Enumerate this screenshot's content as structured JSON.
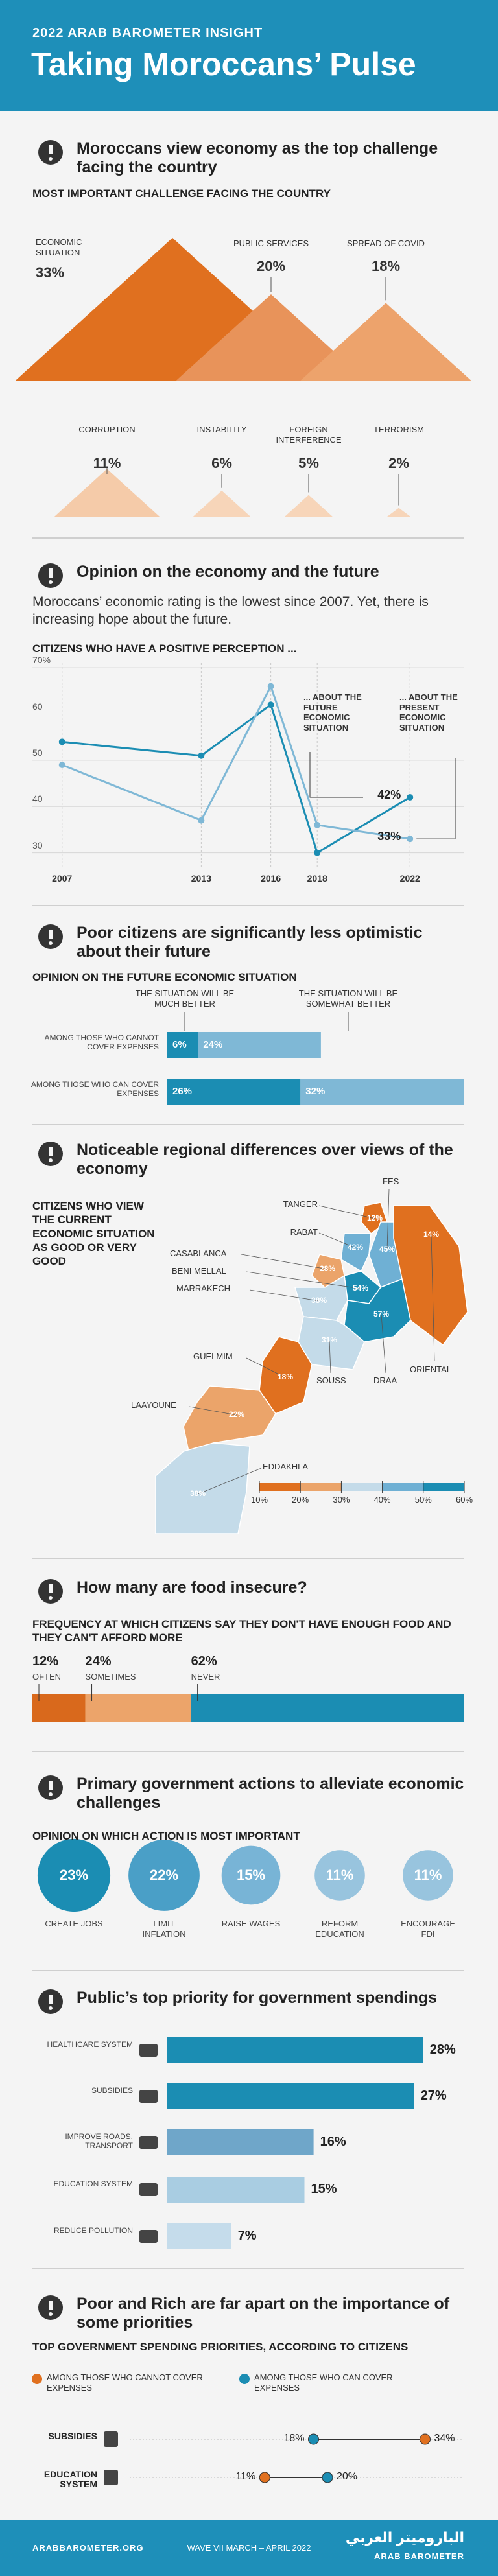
{
  "header": {
    "kicker": "2022 ARAB BAROMETER INSIGHT",
    "title": "Taking Moroccans’ Pulse"
  },
  "sections": [
    {
      "title": "Moroccans view economy as the top challenge facing the country",
      "subtitle": "MOST IMPORTANT CHALLENGE FACING THE COUNTRY",
      "chart_data": {
        "type": "triangle",
        "categories": [
          "ECONOMIC SITUATION",
          "PUBLIC SERVICES",
          "SPREAD OF COVID",
          "CORRUPTION",
          "INSTABILITY",
          "FOREIGN INTERFERENCE",
          "TERRORISM"
        ],
        "values": [
          33,
          20,
          18,
          11,
          6,
          5,
          2
        ],
        "value_labels": [
          "33%",
          "20%",
          "18%",
          "11%",
          "6%",
          "5%",
          "2%"
        ],
        "colors": [
          "#e0701f",
          "#e8935a",
          "#eda36c",
          "#f5cba9",
          "#f7d5b9",
          "#f7d5b9",
          "#f7d5b9"
        ]
      }
    },
    {
      "title": "Opinion on the economy and the future",
      "text": "Moroccans’ economic rating is the lowest since 2007. Yet, there is increasing hope about the future.",
      "subtitle": "CITIZENS WHO HAVE A POSITIVE PERCEPTION ...",
      "chart_data": {
        "type": "line",
        "x": [
          2007,
          2013,
          2016,
          2018,
          2022
        ],
        "xlim": [
          2006,
          2023
        ],
        "xticks": [
          2007,
          2013,
          2016,
          2018,
          2022
        ],
        "ylim": [
          27,
          71
        ],
        "yticks": [
          30,
          40,
          50,
          60,
          {
            "value": 70,
            "label": "70%"
          }
        ],
        "grid": true,
        "series": [
          {
            "name": "... ABOUT THE FUTURE ECONOMIC SITUATION",
            "color": "#1b8db3",
            "values": [
              54,
              51,
              62,
              30,
              42
            ],
            "value_labels": [
              null,
              null,
              null,
              null,
              "42%"
            ]
          },
          {
            "name": "... ABOUT THE PRESENT ECONOMIC SITUATION",
            "color": "#7fb8d6",
            "values": [
              49,
              37,
              66,
              36,
              33
            ],
            "value_labels": [
              null,
              null,
              null,
              null,
              "33%"
            ]
          }
        ]
      }
    },
    {
      "title": "Poor citizens are significantly less optimistic about their future",
      "subtitle": "OPINION ON THE FUTURE ECONOMIC SITUATION",
      "chart_data": {
        "type": "stacked_hbar",
        "categories": [
          "AMONG THOSE WHO CANNOT COVER EXPENSES",
          "AMONG THOSE WHO CAN COVER EXPENSES"
        ],
        "series": [
          {
            "name": "THE SITUATION WILL BE MUCH BETTER",
            "color": "#1b8db3",
            "values": [
              6,
              26
            ],
            "value_labels": [
              "6%",
              "26%"
            ]
          },
          {
            "name": "THE SITUATION WILL BE SOMEWHAT BETTER",
            "color": "#7fb8d6",
            "values": [
              24,
              32
            ],
            "value_labels": [
              "24%",
              "32%"
            ]
          }
        ]
      }
    },
    {
      "title": "Noticeable regional differences over views of the economy",
      "subtitle": "CITIZENS WHO VIEW THE CURRENT ECONOMIC SITUATION AS GOOD OR VERY GOOD",
      "chart_data": {
        "type": "choropleth",
        "categories": [
          "TANGER",
          "FES",
          "RABAT",
          "CASABLANCA",
          "BENI MELLAL",
          "MARRAKECH",
          "ORIENTAL",
          "SOUSS",
          "DRAA",
          "GUELMIM",
          "LAAYOUNE",
          "EDDAKHLA"
        ],
        "values": [
          12,
          45,
          42,
          28,
          54,
          38,
          14,
          31,
          57,
          18,
          22,
          38
        ],
        "value_labels": [
          "12%",
          "45%",
          "42%",
          "28%",
          "54%",
          "38%",
          "14%",
          "31%",
          "57%",
          "18%",
          "22%",
          "38%"
        ],
        "legend_ticks": [
          {
            "value": 10,
            "label": "10%"
          },
          {
            "value": 20,
            "label": "20%"
          },
          {
            "value": 30,
            "label": "30%"
          },
          {
            "value": 40,
            "label": "40%"
          },
          {
            "value": 50,
            "label": "50%"
          },
          {
            "value": 60,
            "label": "60%"
          }
        ],
        "colors": [
          "#e0701f",
          "#eba46a",
          "#c4dbe9",
          "#6fb0d4",
          "#1b8db3"
        ]
      }
    },
    {
      "title": "How many are food insecure?",
      "subtitle": "FREQUENCY AT WHICH CITIZENS SAY THEY DON'T HAVE  ENOUGH FOOD AND THEY CAN'T AFFORD MORE",
      "chart_data": {
        "type": "stacked_bar",
        "categories": [
          "OFTEN",
          "SOMETIMES",
          "NEVER"
        ],
        "values": [
          12,
          24,
          62
        ],
        "value_labels": [
          "12%",
          "24%",
          "62%"
        ],
        "colors": [
          "#d9691c",
          "#eca46a",
          "#1b8db3"
        ]
      }
    },
    {
      "title": "Primary government actions to alleviate economic challenges",
      "subtitle": "OPINION ON WHICH ACTION IS MOST IMPORTANT",
      "chart_data": {
        "type": "bubble",
        "categories": [
          "CREATE JOBS",
          "LIMIT INFLATION",
          "RAISE WAGES",
          "REFORM EDUCATION",
          "ENCOURAGE FDI"
        ],
        "values": [
          23,
          22,
          15,
          11,
          11
        ],
        "value_labels": [
          "23%",
          "22%",
          "15%",
          "11%",
          "11%"
        ],
        "colors": [
          "#1b8db3",
          "#4a9fc7",
          "#78b4d6",
          "#98c4de",
          "#98c4de"
        ]
      }
    },
    {
      "title": "Public’s top priority for government spendings",
      "chart_data": {
        "type": "hbar",
        "categories": [
          "HEALTHCARE SYSTEM",
          "SUBSIDIES",
          "IMPROVE ROADS, TRANSPORT",
          "EDUCATION SYSTEM",
          "REDUCE POLLUTION"
        ],
        "values": [
          28,
          27,
          16,
          15,
          7
        ],
        "value_labels": [
          "28%",
          "27%",
          "16%",
          "15%",
          "7%"
        ],
        "colors": [
          "#1b8db3",
          "#1b8db3",
          "#6fa6c9",
          "#a9cde2",
          "#c5dceb"
        ]
      }
    },
    {
      "title": "Poor and Rich are far apart on the importance of some priorities",
      "subtitle": "TOP GOVERNMENT SPENDING PRIORITIES, ACCORDING TO CITIZENS",
      "chart_data": {
        "type": "dumbbell",
        "categories": [
          "SUBSIDIES",
          "EDUCATION SYSTEM"
        ],
        "xlim": [
          0,
          40
        ],
        "series": [
          {
            "name": "AMONG THOSE WHO CANNOT COVER EXPENSES",
            "color": "#e0701f",
            "values": [
              34,
              11
            ],
            "value_labels": [
              "34%",
              "11%"
            ]
          },
          {
            "name": "AMONG THOSE WHO CAN COVER EXPENSES",
            "color": "#1b8db3",
            "values": [
              18,
              20
            ],
            "value_labels": [
              "18%",
              "20%"
            ]
          }
        ]
      }
    }
  ],
  "footer": {
    "url": "ARABBAROMETER.ORG",
    "wave": "WAVE VII MARCH – APRIL 2022",
    "logo_arabic": "الباروميتر العربي",
    "logo": "ARAB BAROMETER"
  }
}
